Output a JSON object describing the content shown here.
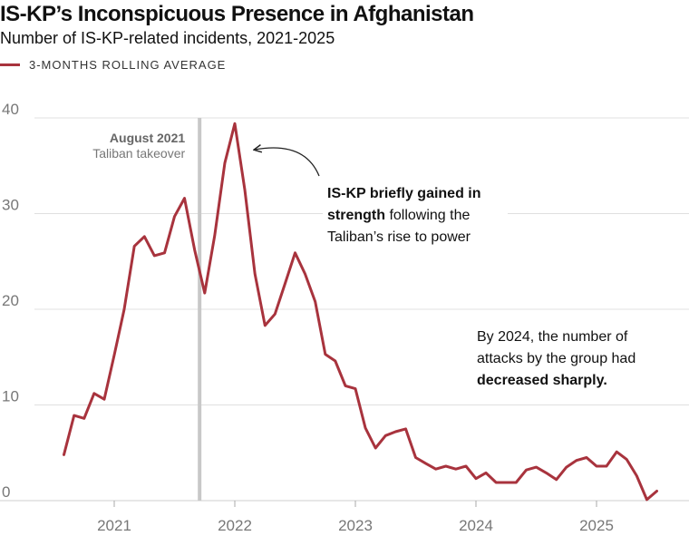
{
  "header": {
    "title": "IS-KP’s Inconspicuous Presence in Afghanistan",
    "subtitle": "Number of IS-KP-related incidents, 2021-2025",
    "legend_label": "3-MONTHS ROLLING AVERAGE"
  },
  "colors": {
    "series": "#a8333d",
    "event_line": "#c8c8c8",
    "grid": "#e0e0e0"
  },
  "chart_data": {
    "type": "line",
    "title": "IS-KP’s Inconspicuous Presence in Afghanistan",
    "subtitle": "Number of IS-KP-related incidents, 2021-2025",
    "xlabel": "",
    "ylabel": "",
    "ylim": [
      0,
      40
    ],
    "y_ticks": [
      "0",
      "10",
      "20",
      "30",
      "40"
    ],
    "x_ticks": [
      "2021",
      "2022",
      "2023",
      "2024",
      "2025"
    ],
    "x_tick_values": [
      2021.0,
      2022.0,
      2023.0,
      2024.0,
      2025.0
    ],
    "xlim": [
      2020.5,
      2025.75
    ],
    "grid": true,
    "series": [
      {
        "name": "3-MONTHS ROLLING AVERAGE",
        "x": [
          2020.583,
          2020.667,
          2020.75,
          2020.833,
          2020.917,
          2021.0,
          2021.083,
          2021.167,
          2021.25,
          2021.333,
          2021.417,
          2021.5,
          2021.583,
          2021.667,
          2021.75,
          2021.833,
          2021.917,
          2022.0,
          2022.083,
          2022.167,
          2022.25,
          2022.333,
          2022.417,
          2022.5,
          2022.583,
          2022.667,
          2022.75,
          2022.833,
          2022.917,
          2023.0,
          2023.083,
          2023.167,
          2023.25,
          2023.333,
          2023.417,
          2023.5,
          2023.583,
          2023.667,
          2023.75,
          2023.833,
          2023.917,
          2024.0,
          2024.083,
          2024.167,
          2024.25,
          2024.333,
          2024.417,
          2024.5,
          2024.583,
          2024.667,
          2024.75,
          2024.833,
          2024.917,
          2025.0,
          2025.083,
          2025.167,
          2025.25,
          2025.333,
          2025.417,
          2025.5
        ],
        "values": [
          4.8,
          8.9,
          8.6,
          11.2,
          10.6,
          15.2,
          20.0,
          26.6,
          27.6,
          25.6,
          25.9,
          29.7,
          31.6,
          26.2,
          21.7,
          27.7,
          35.3,
          39.4,
          32.5,
          23.7,
          18.3,
          19.5,
          22.7,
          25.9,
          23.7,
          20.8,
          15.3,
          14.6,
          12.0,
          11.7,
          7.6,
          5.5,
          6.8,
          7.2,
          7.5,
          4.5,
          3.9,
          3.3,
          3.6,
          3.3,
          3.6,
          2.3,
          2.9,
          1.9,
          1.9,
          1.9,
          3.2,
          3.5,
          2.9,
          2.2,
          3.5,
          4.2,
          4.5,
          3.6,
          3.6,
          5.1,
          4.3,
          2.6,
          0.1,
          1.0
        ]
      }
    ],
    "annotations": [
      {
        "id": "event",
        "x": 2021.708,
        "date": "August 2021",
        "label": "Taliban takeover"
      },
      {
        "id": "peak",
        "lines": [
          [
            {
              "t": "IS-KP briefly gained in",
              "b": true
            }
          ],
          [
            {
              "t": "strength",
              "b": true
            },
            {
              "t": " following the",
              "b": false
            }
          ],
          [
            {
              "t": "Taliban’s rise to power",
              "b": false
            }
          ]
        ]
      },
      {
        "id": "decline",
        "lines": [
          [
            {
              "t": "By 2024, the number of",
              "b": false
            }
          ],
          [
            {
              "t": "attacks by the group had",
              "b": false
            }
          ],
          [
            {
              "t": "decreased sharply.",
              "b": true
            }
          ]
        ]
      }
    ]
  }
}
